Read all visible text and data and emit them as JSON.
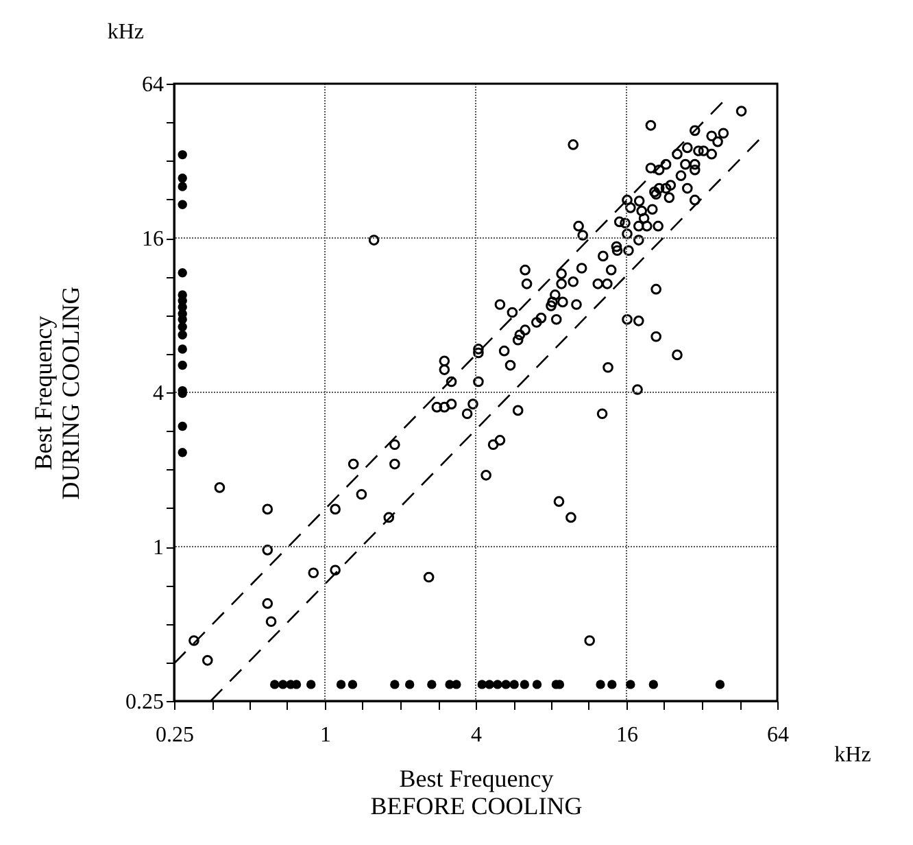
{
  "chart_data": {
    "type": "scatter",
    "xlabel": "Best Frequency\nBEFORE COOLING",
    "ylabel": "Best Frequency\nDURING COOLING",
    "annotations": [
      "kHz",
      "kHz"
    ],
    "log": "xy",
    "grid": true,
    "xlim": [
      0.25,
      64
    ],
    "ylim": [
      0.25,
      64
    ],
    "xticks": [
      0.25,
      {
        "value": 0.354,
        "label": null
      },
      {
        "value": 0.5,
        "label": null
      },
      {
        "value": 0.707,
        "label": null
      },
      1,
      {
        "value": 1.414,
        "label": null
      },
      {
        "value": 2,
        "label": null
      },
      {
        "value": 2.83,
        "label": null
      },
      4,
      {
        "value": 5.66,
        "label": null
      },
      {
        "value": 8,
        "label": null
      },
      {
        "value": 11.3,
        "label": null
      },
      16,
      {
        "value": 22.6,
        "label": null
      },
      {
        "value": 32,
        "label": null
      },
      {
        "value": 45.3,
        "label": null
      },
      64
    ],
    "yticks": [
      0.25,
      {
        "value": 0.354,
        "label": null
      },
      {
        "value": 0.5,
        "label": null
      },
      {
        "value": 0.707,
        "label": null
      },
      1,
      {
        "value": 1.414,
        "label": null
      },
      {
        "value": 2,
        "label": null
      },
      {
        "value": 2.83,
        "label": null
      },
      4,
      {
        "value": 5.66,
        "label": null
      },
      {
        "value": 8,
        "label": null
      },
      {
        "value": 11.3,
        "label": null
      },
      16,
      {
        "value": 22.6,
        "label": null
      },
      {
        "value": 32,
        "label": null
      },
      {
        "value": 45.3,
        "label": null
      },
      64
    ],
    "series": [
      {
        "marker": "circle",
        "color": "#000000",
        "x": [
          0.3,
          0.34,
          0.38,
          0.59,
          0.59,
          0.59,
          0.61,
          0.9,
          1.1,
          1.1,
          1.4,
          1.3,
          1.8,
          1.9,
          1.9,
          2.6,
          2.8,
          3.0,
          3.2,
          3.2,
          3.0,
          4.1,
          3.9,
          3.7,
          4.4,
          4.7,
          5.0,
          5.9,
          1.57,
          5.0,
          5.6,
          4.1,
          4.1,
          5.2,
          5.5,
          3.0,
          5.9,
          9.8,
          20,
          46,
          30,
          35,
          39,
          37,
          28,
          31,
          32.5,
          35,
          25.5,
          27.5,
          30,
          30,
          20,
          21.6,
          23,
          26.4,
          28,
          30,
          24,
          23,
          21.6,
          20.7,
          23.7,
          21,
          16.1,
          18,
          16.6,
          20.3,
          18.4,
          18.8,
          17.9,
          19.3,
          21.4,
          15,
          15.8,
          10.3,
          10.7,
          16.1,
          17.9,
          14.6,
          14.7,
          16.3,
          12.9,
          10.6,
          13.9,
          6.3,
          8.8,
          6.4,
          8.8,
          9.8,
          12.3,
          13.4,
          8.3,
          8.1,
          8.9,
          8.0,
          10.1,
          8.4,
          7.3,
          7.0,
          6.3,
          6.0,
          13.5,
          21,
          16.1,
          17.9,
          21,
          25.5,
          17.7,
          12.8,
          8.6,
          9.6,
          11.4
        ],
        "values": [
          0.43,
          0.36,
          1.7,
          1.4,
          0.97,
          0.6,
          0.51,
          0.79,
          0.81,
          1.4,
          1.6,
          2.1,
          1.3,
          2.5,
          2.1,
          0.76,
          3.5,
          3.5,
          3.6,
          4.4,
          4.9,
          4.4,
          3.6,
          3.3,
          1.9,
          2.5,
          2.6,
          3.4,
          15.7,
          8.8,
          8.2,
          5.9,
          5.7,
          5.8,
          5.1,
          5.3,
          6.4,
          37,
          44,
          50,
          42,
          40,
          41,
          38,
          36,
          35,
          35,
          34,
          34,
          31,
          31,
          29.5,
          30,
          29.5,
          31,
          28,
          25,
          22.5,
          25.7,
          25,
          25,
          24.2,
          23,
          23.7,
          22.5,
          22.3,
          21,
          20.7,
          20.4,
          19.1,
          17.8,
          17.8,
          17.8,
          18.5,
          18.3,
          17.8,
          16.4,
          16.6,
          15.7,
          14.8,
          14.3,
          14.3,
          13.6,
          12.2,
          12.0,
          12.0,
          11.6,
          10.6,
          10.6,
          10.8,
          10.6,
          10.6,
          9.6,
          9.0,
          9.0,
          8.7,
          8.8,
          7.7,
          7.8,
          7.5,
          7.0,
          6.7,
          5.0,
          10.1,
          7.7,
          7.6,
          6.6,
          5.6,
          4.1,
          3.3,
          1.5,
          1.3,
          0.43
        ]
      },
      {
        "marker": "circle",
        "color": "#000000",
        "x": [
          0.27,
          0.27,
          0.27,
          0.27,
          0.27,
          0.27,
          0.27,
          0.27,
          0.27,
          0.27,
          0.27,
          0.27,
          0.27,
          0.27,
          0.27,
          0.27,
          0.27,
          0.27
        ],
        "values": [
          33.8,
          27.4,
          25.4,
          21.6,
          11.7,
          9.6,
          9.1,
          8.6,
          8.1,
          7.7,
          7.2,
          6.7,
          5.9,
          5.1,
          4.06,
          3.96,
          2.95,
          2.33
        ]
      },
      {
        "marker": "circle",
        "color": "#000000",
        "x": [
          0.63,
          0.68,
          0.73,
          0.77,
          0.88,
          1.16,
          1.29,
          1.9,
          2.18,
          2.67,
          3.15,
          3.35,
          4.24,
          4.54,
          4.89,
          5.28,
          5.7,
          6.27,
          7.03,
          8.38,
          8.65,
          12.6,
          14.0,
          16.6,
          20.5,
          37.8
        ],
        "values": [
          0.29,
          0.29,
          0.29,
          0.29,
          0.29,
          0.29,
          0.29,
          0.29,
          0.29,
          0.29,
          0.29,
          0.29,
          0.29,
          0.29,
          0.29,
          0.29,
          0.29,
          0.29,
          0.29,
          0.29,
          0.29,
          0.29,
          0.29,
          0.29,
          0.29,
          0.29
        ]
      },
      {
        "type": "line",
        "color": "#000000",
        "line_style": "dashed",
        "x": [
          0.25,
          40
        ],
        "values": [
          0.35,
          56
        ]
      },
      {
        "type": "line",
        "color": "#000000",
        "line_style": "dashed",
        "x": [
          0.35,
          56
        ],
        "values": [
          0.25,
          40
        ]
      }
    ]
  }
}
